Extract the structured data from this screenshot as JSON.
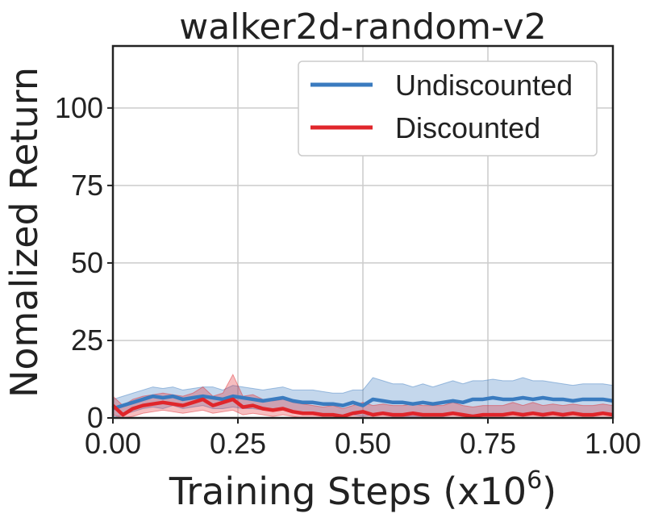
{
  "chart_data": {
    "type": "line",
    "title": "walker2d-random-v2",
    "xlabel": "Training Steps (x",
    "xlabel_exponent_base": "10",
    "xlabel_exponent": "6",
    "xlabel_suffix": ")",
    "ylabel": "Nomalized Return",
    "xlim": [
      0.0,
      1.0
    ],
    "ylim": [
      0,
      120
    ],
    "xticks": [
      "0.00",
      "0.25",
      "0.50",
      "0.75",
      "1.00"
    ],
    "xtick_values": [
      0.0,
      0.25,
      0.5,
      0.75,
      1.0
    ],
    "yticks": [
      "0",
      "25",
      "50",
      "75",
      "100"
    ],
    "ytick_values": [
      0,
      25,
      50,
      75,
      100
    ],
    "grid": true,
    "legend_position": "top-right",
    "x": [
      0.0,
      0.02,
      0.04,
      0.06,
      0.08,
      0.1,
      0.12,
      0.14,
      0.16,
      0.18,
      0.2,
      0.22,
      0.24,
      0.26,
      0.28,
      0.3,
      0.32,
      0.34,
      0.36,
      0.38,
      0.4,
      0.42,
      0.44,
      0.46,
      0.48,
      0.5,
      0.52,
      0.54,
      0.56,
      0.58,
      0.6,
      0.62,
      0.64,
      0.66,
      0.68,
      0.7,
      0.72,
      0.74,
      0.76,
      0.78,
      0.8,
      0.82,
      0.84,
      0.86,
      0.88,
      0.9,
      0.92,
      0.94,
      0.96,
      0.98,
      1.0
    ],
    "series": [
      {
        "name": "Undiscounted",
        "color": "#3a7bbf",
        "values": [
          3,
          4,
          5,
          6,
          7,
          6.5,
          7,
          6,
          6.5,
          7,
          6.5,
          6,
          7,
          6.5,
          6,
          5.5,
          6,
          6.5,
          5.5,
          5,
          5,
          4.5,
          4.5,
          4,
          5,
          4,
          6,
          5.5,
          5,
          5,
          4.5,
          5,
          4.5,
          5,
          5.5,
          5,
          6,
          6,
          6.5,
          6,
          6,
          6.5,
          6,
          6.5,
          6,
          6,
          5.5,
          6,
          6,
          6,
          5.5
        ],
        "lower": [
          0,
          1,
          2,
          3,
          3.5,
          3,
          4,
          3,
          3.5,
          4,
          3,
          3,
          3.5,
          3,
          3,
          2.5,
          3,
          3,
          2,
          1.5,
          1.5,
          1,
          1,
          0.5,
          1,
          0.5,
          1,
          1,
          0.5,
          0.5,
          0.5,
          0.5,
          0.5,
          0.5,
          1,
          0.5,
          1,
          1,
          1.5,
          1,
          1,
          1.5,
          1,
          1.5,
          1,
          1,
          1,
          1,
          1,
          1.5,
          1
        ],
        "upper": [
          6,
          7,
          8,
          9,
          10,
          9.5,
          10,
          9,
          9.5,
          10,
          10,
          9,
          10.5,
          10,
          9.5,
          9,
          9.5,
          10,
          9,
          9,
          9,
          8.5,
          8,
          8,
          9,
          9,
          13,
          12,
          11,
          11,
          10,
          11,
          10,
          11,
          12,
          11,
          12,
          12,
          12.5,
          12,
          12,
          13,
          12,
          12,
          11.5,
          11,
          10.5,
          11,
          11,
          11,
          10.5
        ]
      },
      {
        "name": "Discounted",
        "color": "#e0262b",
        "values": [
          4,
          1,
          3,
          4,
          4.5,
          5,
          4.5,
          4,
          5,
          6,
          4,
          5,
          6,
          3.5,
          4,
          3,
          2.5,
          3,
          2,
          1.5,
          1.5,
          1,
          1,
          0.5,
          1.5,
          2,
          1,
          1.5,
          1,
          1,
          1.5,
          1,
          1,
          1,
          1.5,
          1,
          0.5,
          1,
          1,
          1,
          1.5,
          1,
          1.5,
          1,
          1.5,
          1,
          1.5,
          1,
          1,
          1.5,
          1
        ],
        "lower": [
          1,
          0,
          0.5,
          1.5,
          2,
          2.5,
          2,
          1.5,
          2,
          2.5,
          1.5,
          2,
          2.5,
          1,
          1.5,
          1,
          0.5,
          1,
          0.5,
          0,
          0,
          0,
          0,
          0,
          0,
          0,
          0,
          0,
          0,
          0,
          0,
          0,
          0,
          0,
          0,
          0,
          0,
          0,
          0,
          0,
          0,
          0,
          0,
          0,
          0,
          0,
          0,
          0,
          0,
          0,
          0
        ],
        "upper": [
          7,
          4,
          6,
          7,
          7.5,
          8,
          7.5,
          7,
          8,
          10,
          7,
          8,
          14,
          7,
          7.5,
          6,
          5.5,
          6,
          5,
          4.5,
          4,
          3.5,
          4,
          3,
          4,
          5,
          4,
          4.5,
          4,
          4,
          4.5,
          4,
          4,
          4,
          5,
          4,
          3.5,
          4,
          4,
          4,
          5,
          4,
          5,
          4,
          4.5,
          4,
          4.5,
          4,
          4,
          4.5,
          4
        ]
      }
    ]
  }
}
